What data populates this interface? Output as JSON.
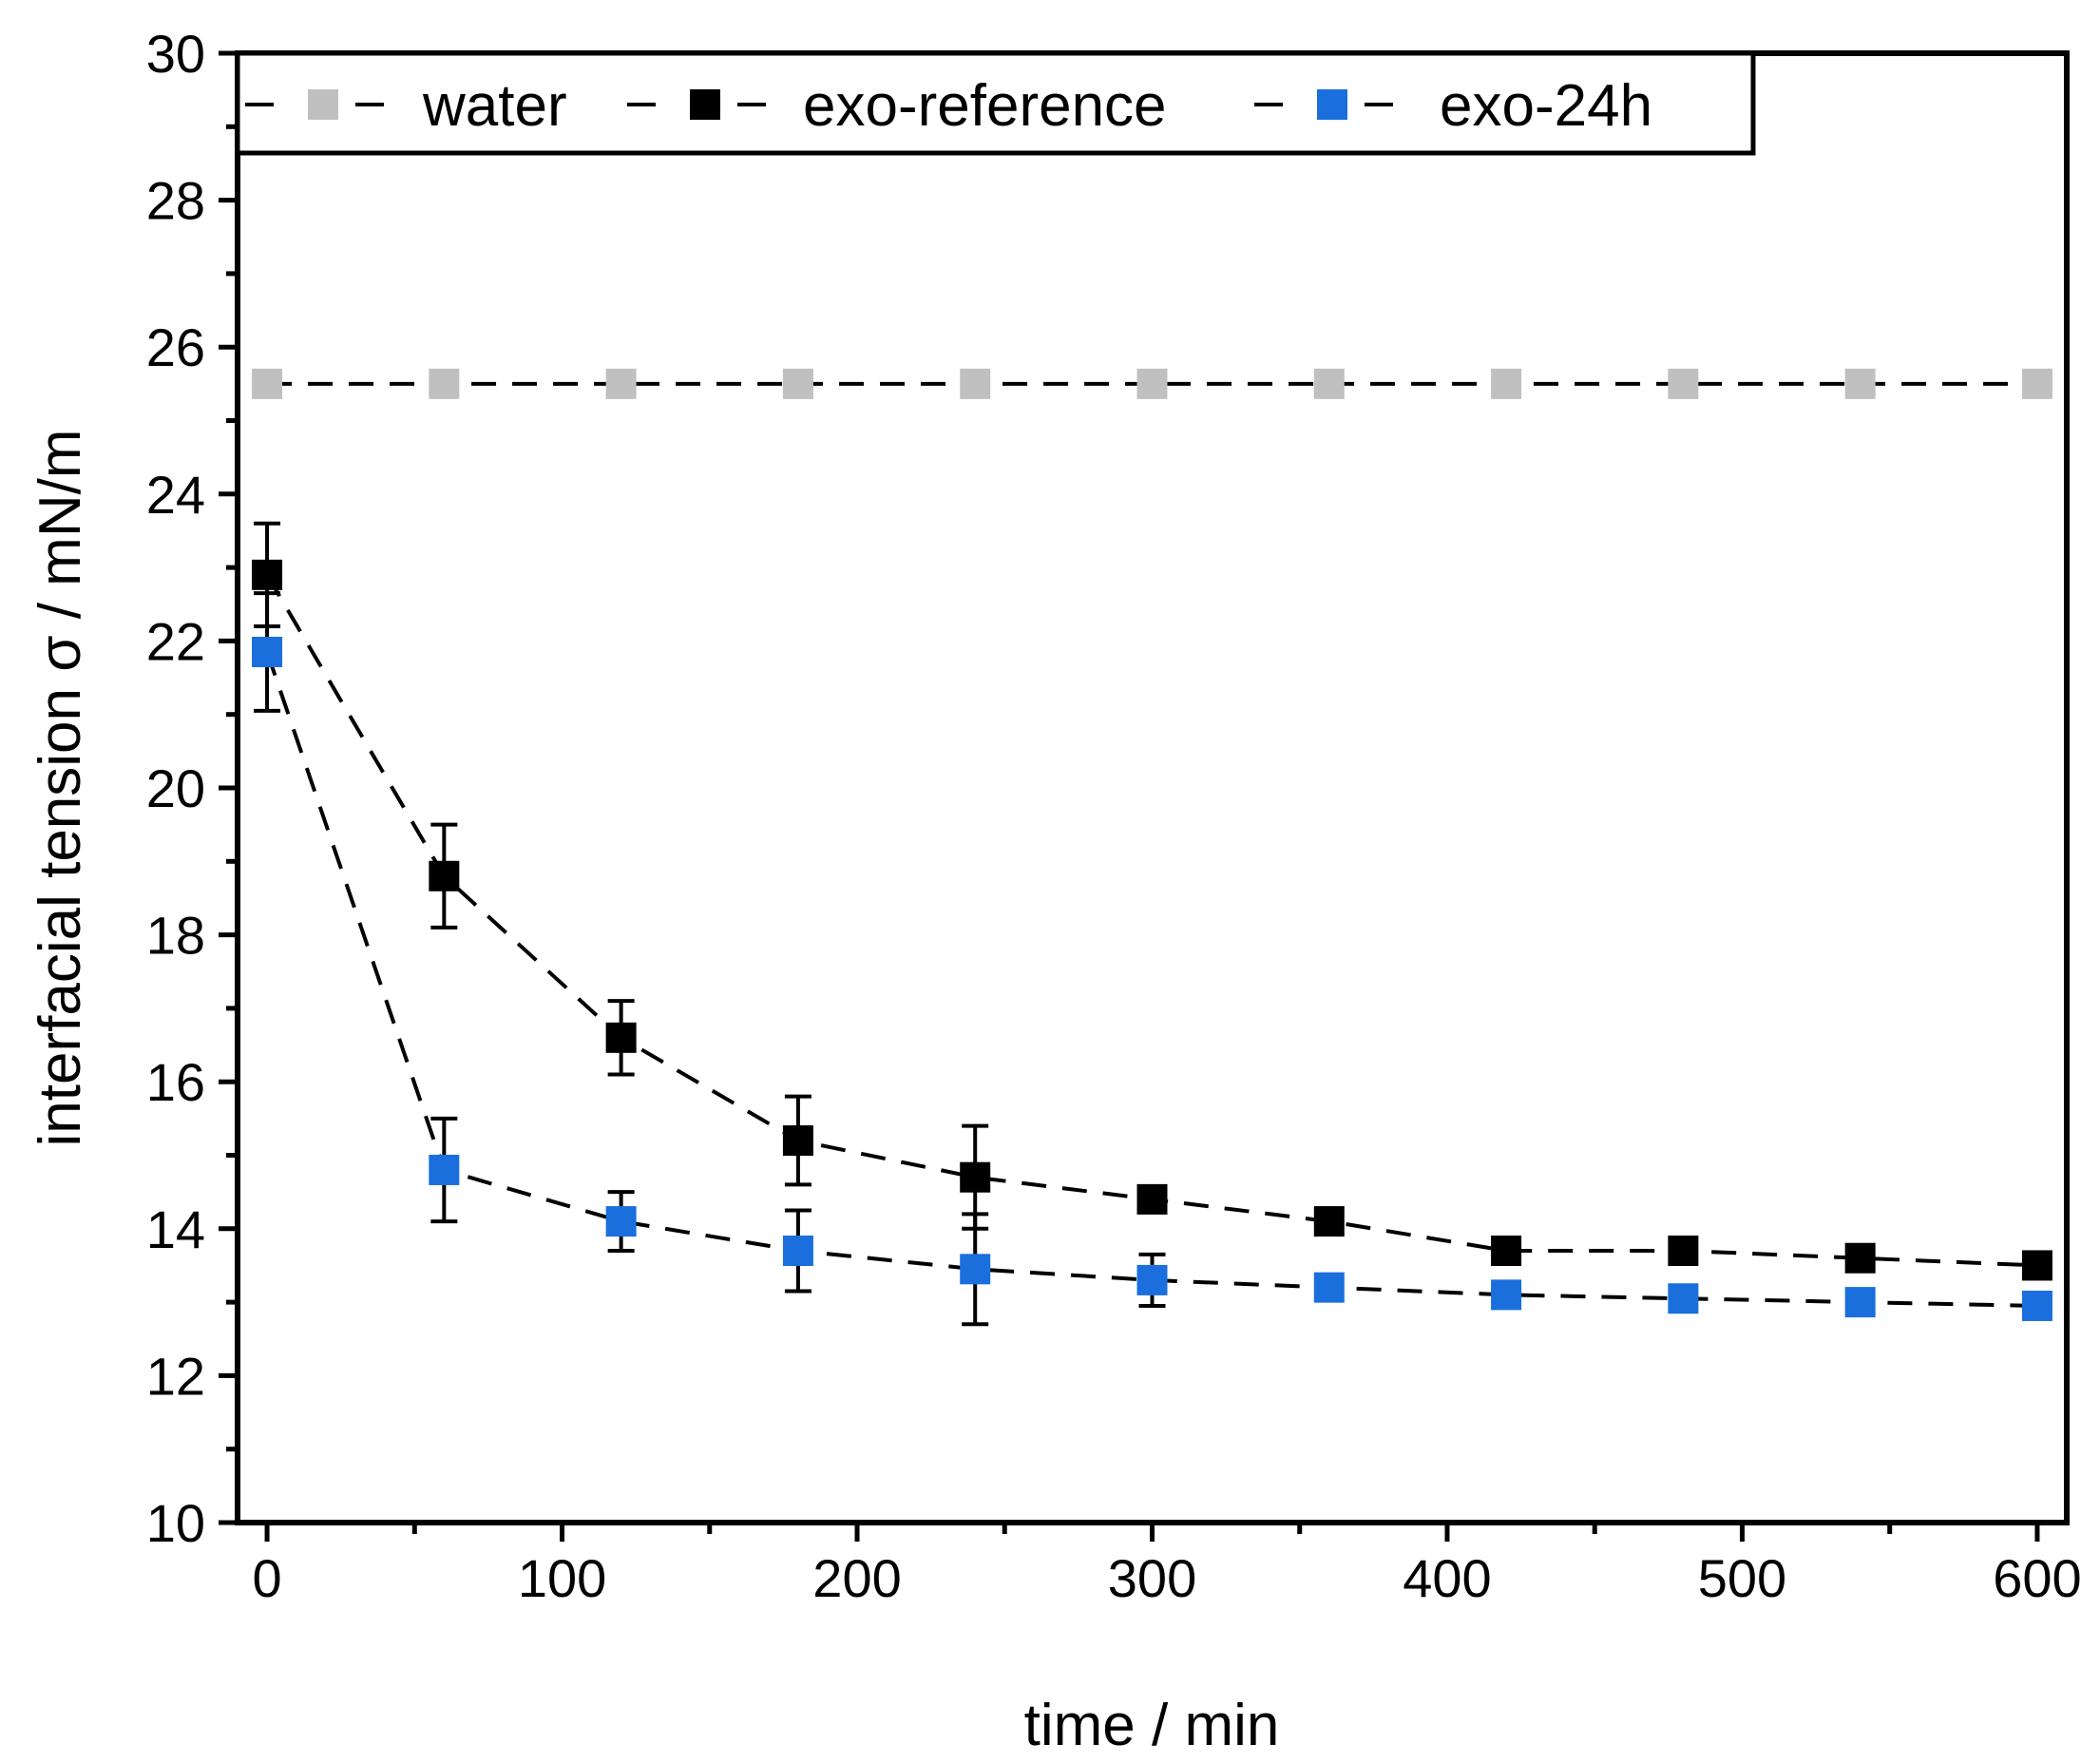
{
  "chart_data": {
    "type": "scatter",
    "title": "",
    "xlabel": "time / min",
    "ylabel": "interfacial tension σ / mN/m",
    "xlim": [
      -10,
      610
    ],
    "ylim": [
      10,
      30
    ],
    "xticks": [
      0,
      100,
      200,
      300,
      400,
      500,
      600
    ],
    "yticks": [
      10,
      12,
      14,
      16,
      18,
      20,
      22,
      24,
      26,
      28,
      30
    ],
    "x_minor_step": 50,
    "y_minor_step": 1,
    "grid": false,
    "legend_position": "top-left",
    "x": [
      0,
      60,
      120,
      180,
      240,
      300,
      360,
      420,
      480,
      540,
      600
    ],
    "series": [
      {
        "name": "water",
        "color": "#c0c0c0",
        "marker": "square",
        "line": "dashed",
        "values": [
          25.5,
          25.5,
          25.5,
          25.5,
          25.5,
          25.5,
          25.5,
          25.5,
          25.5,
          25.5,
          25.5
        ],
        "errors": [
          0,
          0,
          0,
          0,
          0,
          0,
          0,
          0,
          0,
          0,
          0
        ]
      },
      {
        "name": "exo-reference",
        "color": "#000000",
        "marker": "square",
        "line": "dashed",
        "values": [
          22.9,
          18.8,
          16.6,
          15.2,
          14.7,
          14.4,
          14.1,
          13.7,
          13.7,
          13.6,
          13.5
        ],
        "errors": [
          0.7,
          0.7,
          0.5,
          0.6,
          0.7,
          0.1,
          0.15,
          0.1,
          0.1,
          0.1,
          0.1
        ]
      },
      {
        "name": "exo-24h",
        "color": "#1a6fdc",
        "marker": "square",
        "line": "dashed",
        "values": [
          21.85,
          14.8,
          14.1,
          13.7,
          13.45,
          13.3,
          13.2,
          13.1,
          13.05,
          13.0,
          12.95
        ],
        "errors": [
          0.8,
          0.7,
          0.4,
          0.55,
          0.75,
          0.35,
          0.15,
          0.15,
          0.15,
          0.15,
          0.15
        ]
      }
    ]
  }
}
